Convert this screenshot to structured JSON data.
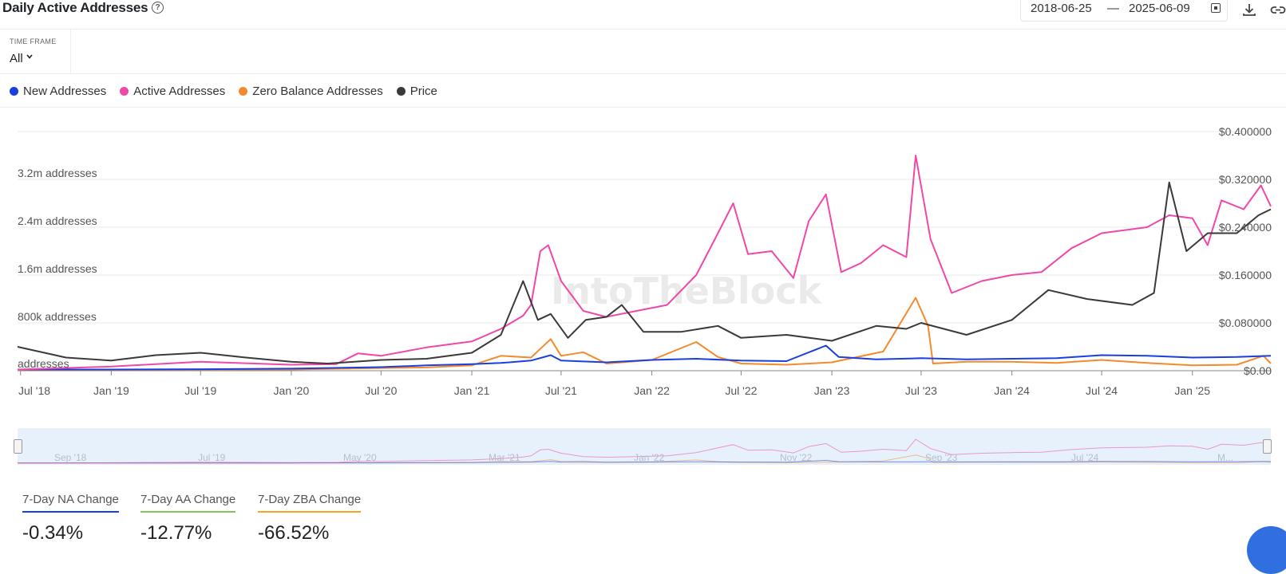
{
  "header": {
    "title": "Daily Active Addresses",
    "help_symbol": "?",
    "date_start": "2018-06-25",
    "date_separator": "—",
    "date_end": "2025-06-09"
  },
  "timeframe": {
    "label": "TIME FRAME",
    "value": "All"
  },
  "legend": [
    {
      "label": "New Addresses",
      "color": "#1a3fe0"
    },
    {
      "label": "Active Addresses",
      "color": "#f048a8"
    },
    {
      "label": "Zero Balance Addresses",
      "color": "#f58a2c"
    },
    {
      "label": "Price",
      "color": "#3a3a3a"
    }
  ],
  "watermark": "IntoTheBlock",
  "navigator": {
    "labels": [
      "Sep '18",
      "Jul '19",
      "May '20",
      "Mar '21",
      "Jan '22",
      "Nov '22",
      "Sep '23",
      "Jul '24",
      "M..."
    ]
  },
  "stats": [
    {
      "label": "7-Day NA Change",
      "value": "-0.34%",
      "color": "#1a3fe0"
    },
    {
      "label": "7-Day AA Change",
      "value": "-12.77%",
      "color": "#7cc95a"
    },
    {
      "label": "7-Day ZBA Change",
      "value": "-66.52%",
      "color": "#f5a524"
    }
  ],
  "chart_data": {
    "type": "line",
    "x_start": "2018-06-25",
    "x_end": "2025-06-09",
    "x_ticks": [
      "Jul '18",
      "Jan '19",
      "Jul '19",
      "Jan '20",
      "Jul '20",
      "Jan '21",
      "Jul '21",
      "Jan '22",
      "Jul '22",
      "Jan '23",
      "Jul '23",
      "Jan '24",
      "Jul '24",
      "Jan '25"
    ],
    "y_left": {
      "ticks": [
        "addresses",
        "800k addresses",
        "1.6m addresses",
        "2.4m addresses",
        "3.2m addresses"
      ],
      "ylim": [
        0,
        3600000
      ]
    },
    "y_right": {
      "ticks": [
        "$0.00",
        "$0.080000",
        "$0.160000",
        "$0.240000",
        "$0.320000",
        "$0.400000"
      ],
      "ylim": [
        0,
        0.4
      ]
    },
    "grid": true,
    "legend_position": "top-left",
    "series": [
      {
        "name": "New Addresses",
        "axis": "left",
        "color": "#1a3fe0",
        "points": [
          [
            "2018-06-25",
            20000
          ],
          [
            "2019-01-01",
            20000
          ],
          [
            "2019-07-01",
            25000
          ],
          [
            "2020-01-01",
            35000
          ],
          [
            "2020-07-01",
            60000
          ],
          [
            "2020-10-01",
            90000
          ],
          [
            "2021-01-01",
            110000
          ],
          [
            "2021-03-01",
            130000
          ],
          [
            "2021-05-01",
            170000
          ],
          [
            "2021-06-10",
            260000
          ],
          [
            "2021-07-01",
            170000
          ],
          [
            "2021-10-01",
            140000
          ],
          [
            "2022-01-01",
            180000
          ],
          [
            "2022-04-01",
            200000
          ],
          [
            "2022-07-01",
            170000
          ],
          [
            "2022-10-01",
            160000
          ],
          [
            "2022-12-20",
            420000
          ],
          [
            "2023-01-15",
            230000
          ],
          [
            "2023-04-01",
            190000
          ],
          [
            "2023-07-01",
            210000
          ],
          [
            "2023-10-01",
            190000
          ],
          [
            "2024-01-01",
            200000
          ],
          [
            "2024-04-01",
            210000
          ],
          [
            "2024-07-01",
            260000
          ],
          [
            "2024-10-01",
            250000
          ],
          [
            "2025-01-01",
            220000
          ],
          [
            "2025-04-01",
            230000
          ],
          [
            "2025-06-09",
            250000
          ]
        ]
      },
      {
        "name": "Active Addresses",
        "axis": "left",
        "color": "#f048a8",
        "points": [
          [
            "2018-06-25",
            20000
          ],
          [
            "2019-01-01",
            70000
          ],
          [
            "2019-07-01",
            150000
          ],
          [
            "2020-01-01",
            100000
          ],
          [
            "2020-04-01",
            110000
          ],
          [
            "2020-05-15",
            290000
          ],
          [
            "2020-07-01",
            250000
          ],
          [
            "2020-10-01",
            390000
          ],
          [
            "2021-01-01",
            490000
          ],
          [
            "2021-03-01",
            700000
          ],
          [
            "2021-04-15",
            920000
          ],
          [
            "2021-05-01",
            1100000
          ],
          [
            "2021-05-20",
            2000000
          ],
          [
            "2021-06-05",
            2100000
          ],
          [
            "2021-07-01",
            1500000
          ],
          [
            "2021-08-15",
            1000000
          ],
          [
            "2021-10-01",
            900000
          ],
          [
            "2021-12-01",
            1000000
          ],
          [
            "2022-02-01",
            1100000
          ],
          [
            "2022-04-01",
            1600000
          ],
          [
            "2022-05-15",
            2300000
          ],
          [
            "2022-06-15",
            2800000
          ],
          [
            "2022-07-15",
            1950000
          ],
          [
            "2022-09-01",
            2000000
          ],
          [
            "2022-10-15",
            1550000
          ],
          [
            "2022-11-15",
            2500000
          ],
          [
            "2022-12-20",
            2950000
          ],
          [
            "2023-01-20",
            1650000
          ],
          [
            "2023-03-01",
            1800000
          ],
          [
            "2023-04-15",
            2100000
          ],
          [
            "2023-06-01",
            1900000
          ],
          [
            "2023-06-20",
            3600000
          ],
          [
            "2023-07-20",
            2200000
          ],
          [
            "2023-09-01",
            1300000
          ],
          [
            "2023-11-01",
            1500000
          ],
          [
            "2024-01-01",
            1600000
          ],
          [
            "2024-03-01",
            1650000
          ],
          [
            "2024-05-01",
            2050000
          ],
          [
            "2024-07-01",
            2300000
          ],
          [
            "2024-10-01",
            2400000
          ],
          [
            "2024-11-15",
            2600000
          ],
          [
            "2025-01-01",
            2550000
          ],
          [
            "2025-02-01",
            2100000
          ],
          [
            "2025-03-01",
            2850000
          ],
          [
            "2025-04-15",
            2700000
          ],
          [
            "2025-05-20",
            3100000
          ],
          [
            "2025-06-09",
            2750000
          ]
        ]
      },
      {
        "name": "Zero Balance Addresses",
        "axis": "left",
        "color": "#f58a2c",
        "points": [
          [
            "2018-06-25",
            15000
          ],
          [
            "2019-01-01",
            15000
          ],
          [
            "2019-07-01",
            18000
          ],
          [
            "2020-01-01",
            20000
          ],
          [
            "2020-07-01",
            45000
          ],
          [
            "2020-10-01",
            55000
          ],
          [
            "2021-01-01",
            90000
          ],
          [
            "2021-03-01",
            250000
          ],
          [
            "2021-05-01",
            220000
          ],
          [
            "2021-06-10",
            530000
          ],
          [
            "2021-07-01",
            250000
          ],
          [
            "2021-08-15",
            310000
          ],
          [
            "2021-10-01",
            120000
          ],
          [
            "2022-01-01",
            180000
          ],
          [
            "2022-04-01",
            480000
          ],
          [
            "2022-05-15",
            230000
          ],
          [
            "2022-07-01",
            120000
          ],
          [
            "2022-10-01",
            100000
          ],
          [
            "2023-01-01",
            140000
          ],
          [
            "2023-04-15",
            320000
          ],
          [
            "2023-06-20",
            1220000
          ],
          [
            "2023-07-15",
            750000
          ],
          [
            "2023-07-25",
            120000
          ],
          [
            "2023-10-01",
            150000
          ],
          [
            "2024-01-01",
            150000
          ],
          [
            "2024-04-01",
            130000
          ],
          [
            "2024-07-01",
            180000
          ],
          [
            "2024-10-01",
            130000
          ],
          [
            "2025-01-01",
            90000
          ],
          [
            "2025-04-01",
            100000
          ],
          [
            "2025-05-25",
            250000
          ],
          [
            "2025-06-09",
            120000
          ]
        ]
      },
      {
        "name": "Price",
        "axis": "right",
        "color": "#3a3a3a",
        "points": [
          [
            "2018-06-25",
            0.04
          ],
          [
            "2018-10-01",
            0.022
          ],
          [
            "2019-01-01",
            0.017
          ],
          [
            "2019-04-01",
            0.026
          ],
          [
            "2019-07-01",
            0.03
          ],
          [
            "2019-10-01",
            0.022
          ],
          [
            "2020-01-01",
            0.015
          ],
          [
            "2020-03-15",
            0.012
          ],
          [
            "2020-07-01",
            0.018
          ],
          [
            "2020-10-01",
            0.02
          ],
          [
            "2021-01-01",
            0.03
          ],
          [
            "2021-03-01",
            0.06
          ],
          [
            "2021-04-15",
            0.15
          ],
          [
            "2021-05-15",
            0.085
          ],
          [
            "2021-06-10",
            0.095
          ],
          [
            "2021-07-15",
            0.055
          ],
          [
            "2021-08-20",
            0.085
          ],
          [
            "2021-10-01",
            0.09
          ],
          [
            "2021-11-01",
            0.11
          ],
          [
            "2021-12-15",
            0.065
          ],
          [
            "2022-03-01",
            0.065
          ],
          [
            "2022-05-15",
            0.075
          ],
          [
            "2022-07-01",
            0.055
          ],
          [
            "2022-10-01",
            0.06
          ],
          [
            "2023-01-01",
            0.05
          ],
          [
            "2023-04-01",
            0.075
          ],
          [
            "2023-06-01",
            0.07
          ],
          [
            "2023-07-01",
            0.08
          ],
          [
            "2023-10-01",
            0.06
          ],
          [
            "2024-01-01",
            0.085
          ],
          [
            "2024-03-15",
            0.135
          ],
          [
            "2024-06-01",
            0.12
          ],
          [
            "2024-09-01",
            0.11
          ],
          [
            "2024-10-15",
            0.13
          ],
          [
            "2024-11-15",
            0.315
          ],
          [
            "2024-12-20",
            0.2
          ],
          [
            "2025-02-01",
            0.23
          ],
          [
            "2025-04-01",
            0.23
          ],
          [
            "2025-05-15",
            0.26
          ],
          [
            "2025-06-09",
            0.27
          ]
        ]
      }
    ]
  }
}
